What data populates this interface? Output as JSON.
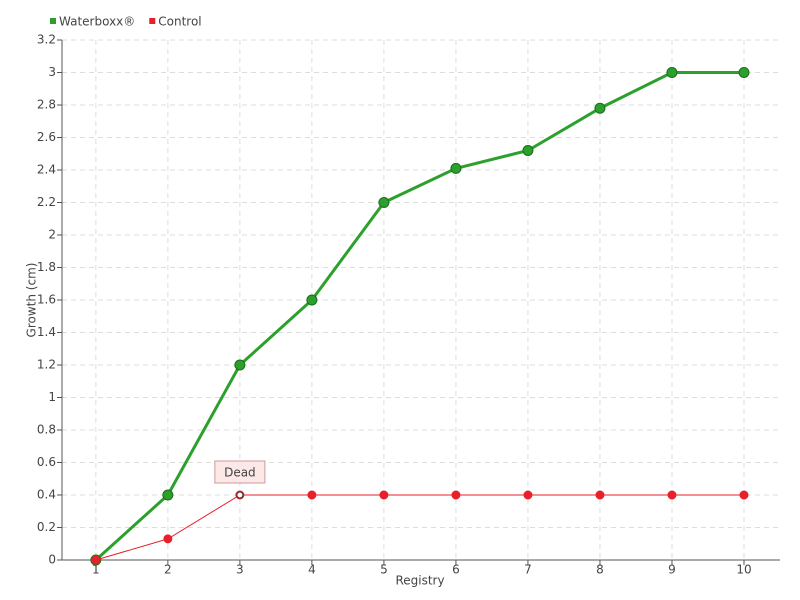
{
  "chart_data": {
    "type": "line",
    "x": [
      1,
      2,
      3,
      4,
      5,
      6,
      7,
      8,
      9,
      10
    ],
    "xlabel": "Registry",
    "ylabel": "Growth (cm)",
    "series": [
      {
        "name": "Waterboxx®",
        "color": "#2ca02c",
        "values": [
          0,
          0.4,
          1.2,
          1.6,
          2.2,
          2.41,
          2.52,
          2.78,
          3.0,
          3.0
        ]
      },
      {
        "name": "Control",
        "color": "#e8202a",
        "values": [
          0,
          0.13,
          0.4,
          0.4,
          0.4,
          0.4,
          0.4,
          0.4,
          0.4,
          0.4
        ]
      }
    ],
    "annotations": [
      {
        "text": "Dead",
        "series": 1,
        "index": 2
      }
    ],
    "xlim": [
      0.53,
      10.5
    ],
    "xticks": [
      1,
      2,
      3,
      4,
      5,
      6,
      7,
      8,
      9,
      10
    ],
    "ylim": [
      0,
      3.2
    ],
    "yticks": [
      0,
      0.2,
      0.4,
      0.6,
      0.8,
      1,
      1.2,
      1.4,
      1.6,
      1.8,
      2,
      2.2,
      2.4,
      2.6,
      2.8,
      3,
      3.2
    ],
    "grid": true,
    "legend": "top-left"
  }
}
